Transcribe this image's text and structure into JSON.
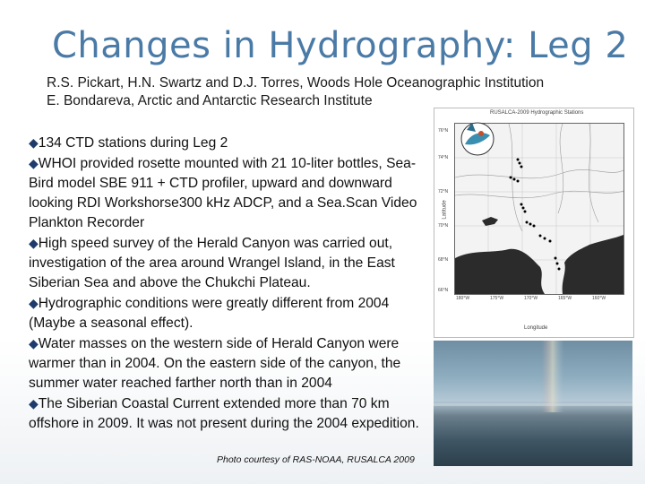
{
  "slide": {
    "title": "Changes in Hydrography: Leg 2",
    "authors": [
      "R.S. Pickart, H.N. Swartz and D.J. Torres, Woods Hole Oceanographic Institution",
      "E. Bondareva, Arctic and Antarctic Research Institute"
    ],
    "bullet_symbol": "◆",
    "bullets": [
      "134 CTD stations during Leg 2",
      "WHOI provided rosette mounted with 21 10-liter bottles, Sea-Bird model SBE 911 + CTD profiler, upward and downward looking RDI Workshorse300 kHz ADCP, and a Sea.Scan Video Plankton Recorder",
      "High speed survey of the Herald Canyon was carried out, investigation of the area around Wrangel Island,  in the East Siberian Sea and above the Chukchi Plateau.",
      "Hydrographic conditions were greatly different from 2004 (Maybe a seasonal effect).",
      "Water masses on the western side of Herald Canyon were warmer than in 2004.  On the eastern side of the canyon, the summer water reached farther north than in 2004",
      "The Siberian Coastal Current extended more than 70 km offshore in 2009.  It was not present during the 2004 expedition."
    ],
    "photo_credit": "Photo courtesy of RAS-NOAA, RUSALCA 2009"
  },
  "map": {
    "title": "RUSALCA-2009 Hydrographic Stations",
    "x_axis_label": "Longitude",
    "y_axis_label": "Latitude",
    "x_ticks": [
      "180°W",
      "175°W",
      "170°W",
      "165°W",
      "160°W"
    ],
    "y_ticks": [
      "76°N",
      "74°N",
      "72°N",
      "70°N",
      "68°N",
      "66°N"
    ],
    "land_color": "#2b2b2b",
    "water_color": "#f3f3f3"
  },
  "photo": {
    "icon": "ocean-rainbow-photo"
  }
}
